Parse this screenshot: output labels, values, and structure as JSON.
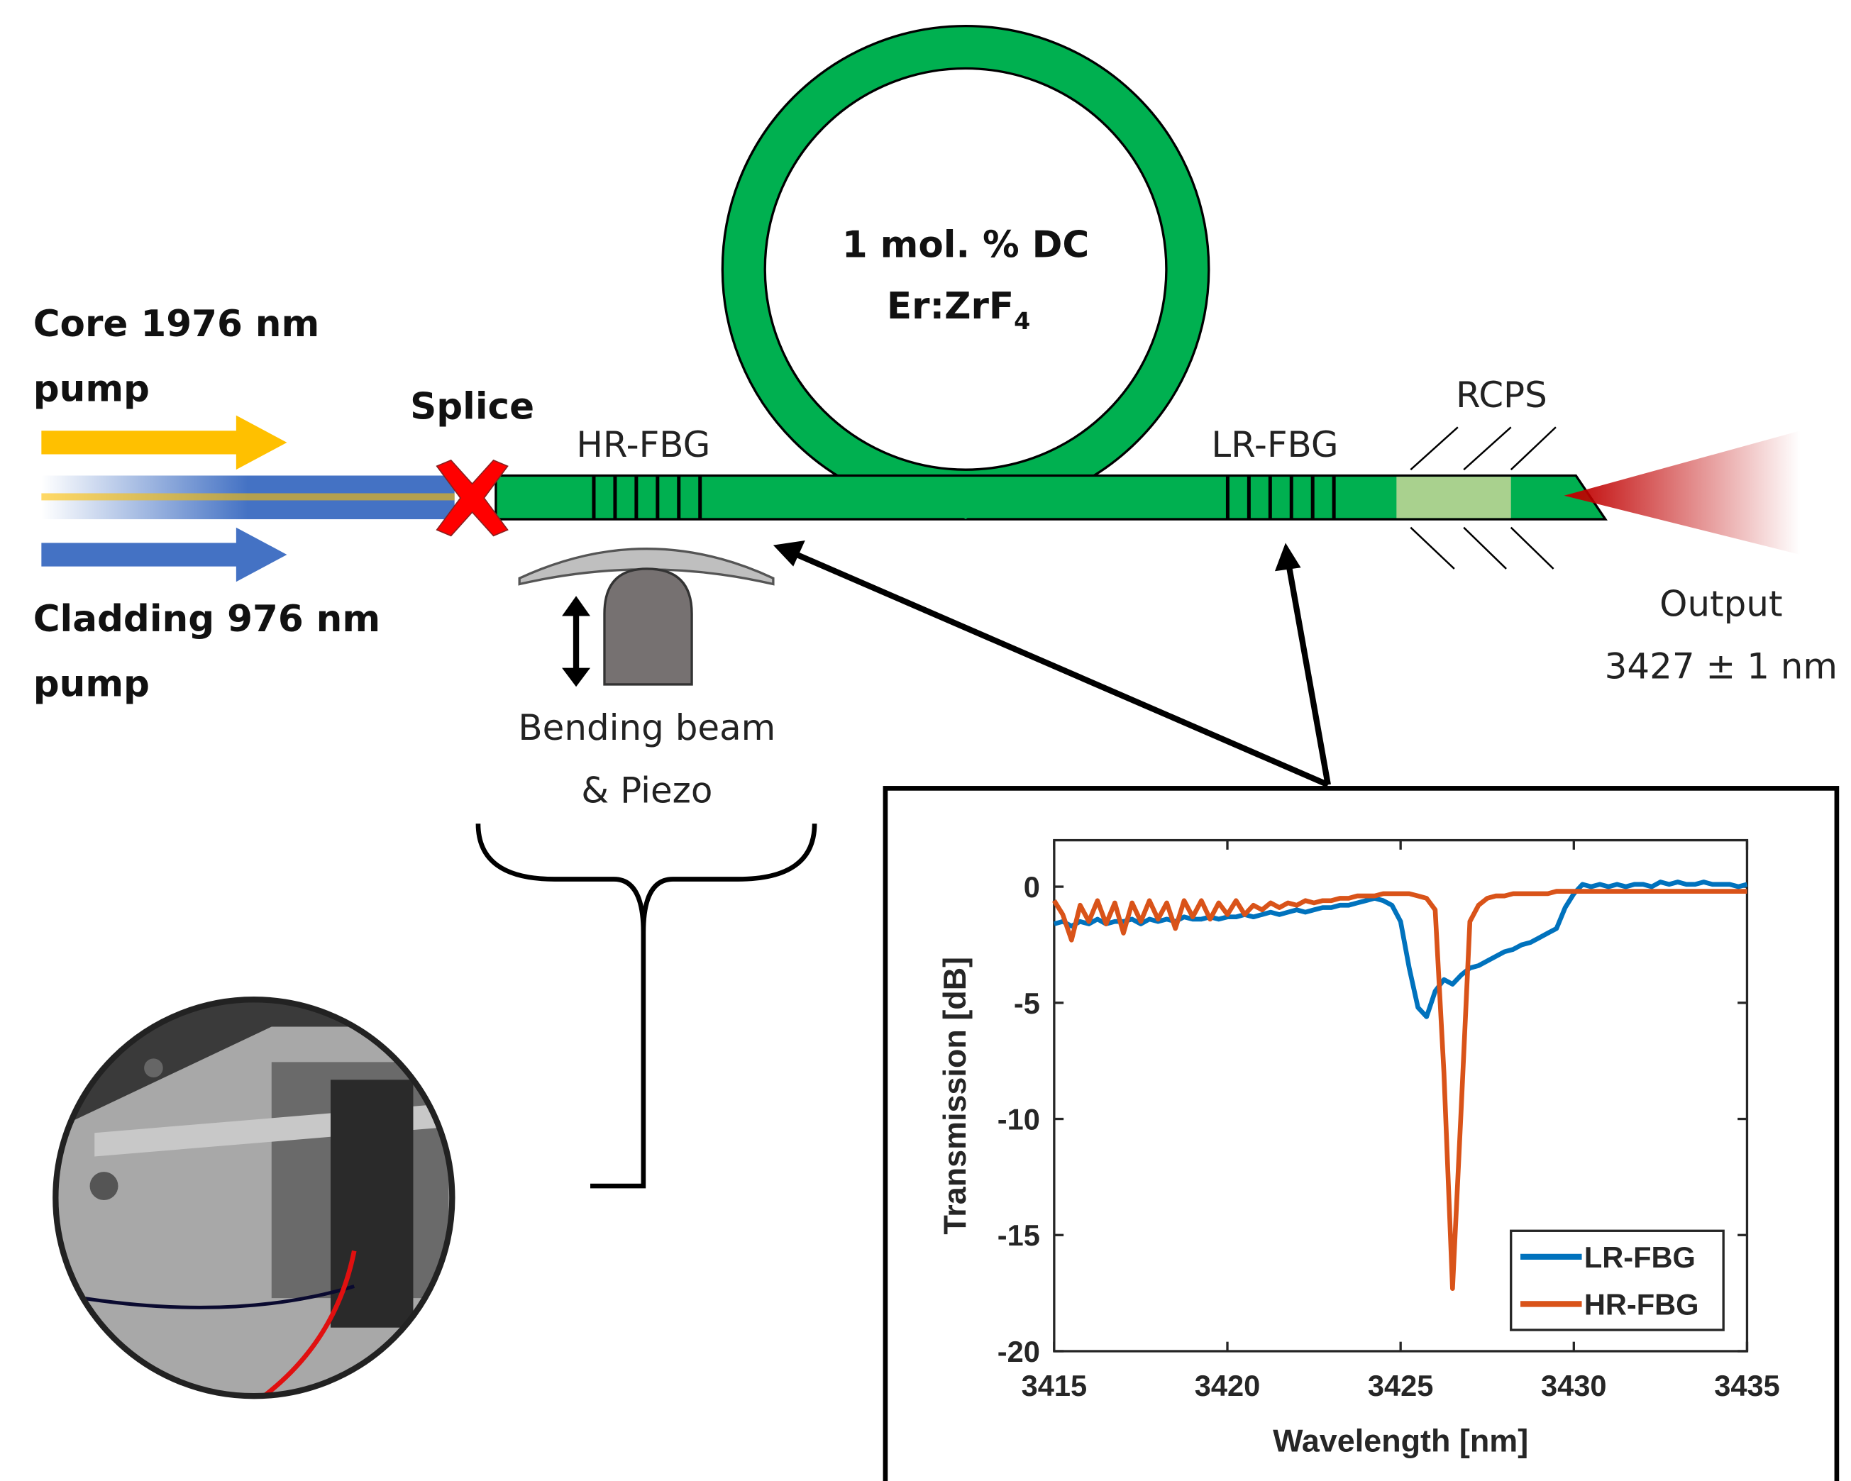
{
  "labels": {
    "core_pump": [
      "Core 1976 nm",
      "pump"
    ],
    "cladding_pump": [
      "Cladding 976 nm",
      "pump"
    ],
    "splice": "Splice",
    "hr_fbg": "HR-FBG",
    "lr_fbg": "LR-FBG",
    "rcps": "RCPS",
    "fiber": {
      "line1": "1 mol. % DC",
      "line2": {
        "main": "Er:ZrF",
        "sub": "4"
      }
    },
    "output": [
      "Output",
      "3427 ± 1 nm"
    ],
    "bending": [
      "Bending beam",
      "& Piezo"
    ]
  },
  "chart_data": {
    "type": "line",
    "xlabel": "Wavelength [nm]",
    "ylabel": "Transmission [dB]",
    "xlim": [
      3415,
      3435
    ],
    "ylim": [
      -20,
      2
    ],
    "xticks": [
      3415,
      3420,
      3425,
      3430,
      3435
    ],
    "yticks": [
      -20,
      -15,
      -10,
      -5,
      0
    ],
    "legend": "lower right",
    "x": [
      3415,
      3415.25,
      3415.5,
      3415.75,
      3416,
      3416.25,
      3416.5,
      3416.75,
      3417,
      3417.25,
      3417.5,
      3417.75,
      3418,
      3418.25,
      3418.5,
      3418.75,
      3419,
      3419.25,
      3419.5,
      3419.75,
      3420,
      3420.25,
      3420.5,
      3420.75,
      3421,
      3421.25,
      3421.5,
      3421.75,
      3422,
      3422.25,
      3422.5,
      3422.75,
      3423,
      3423.25,
      3423.5,
      3423.75,
      3424,
      3424.25,
      3424.5,
      3424.75,
      3425,
      3425.25,
      3425.5,
      3425.75,
      3426,
      3426.25,
      3426.5,
      3426.75,
      3427,
      3427.25,
      3427.5,
      3427.75,
      3428,
      3428.25,
      3428.5,
      3428.75,
      3429,
      3429.25,
      3429.5,
      3429.75,
      3430,
      3430.25,
      3430.5,
      3430.75,
      3431,
      3431.25,
      3431.5,
      3431.75,
      3432,
      3432.25,
      3432.5,
      3432.75,
      3433,
      3433.25,
      3433.5,
      3433.75,
      3434,
      3434.25,
      3434.5,
      3434.75,
      3435
    ],
    "series": [
      {
        "name": "LR-FBG",
        "color": "#0072bd",
        "values": [
          -1.6,
          -1.5,
          -1.7,
          -1.5,
          -1.6,
          -1.4,
          -1.6,
          -1.5,
          -1.5,
          -1.4,
          -1.6,
          -1.4,
          -1.5,
          -1.4,
          -1.5,
          -1.3,
          -1.4,
          -1.4,
          -1.3,
          -1.4,
          -1.3,
          -1.3,
          -1.2,
          -1.3,
          -1.2,
          -1.1,
          -1.2,
          -1.1,
          -1.0,
          -1.1,
          -1.0,
          -0.9,
          -0.9,
          -0.8,
          -0.8,
          -0.7,
          -0.6,
          -0.5,
          -0.6,
          -0.8,
          -1.5,
          -3.5,
          -5.2,
          -5.6,
          -4.5,
          -4.0,
          -4.2,
          -3.8,
          -3.5,
          -3.4,
          -3.2,
          -3.0,
          -2.8,
          -2.7,
          -2.5,
          -2.4,
          -2.2,
          -2.0,
          -1.8,
          -0.9,
          -0.3,
          0.1,
          0.0,
          0.1,
          0.0,
          0.1,
          0.0,
          0.1,
          0.1,
          0.0,
          0.2,
          0.1,
          0.2,
          0.1,
          0.1,
          0.2,
          0.1,
          0.1,
          0.1,
          0.0,
          0.1
        ]
      },
      {
        "name": "HR-FBG",
        "color": "#d95319",
        "values": [
          -0.6,
          -1.2,
          -2.3,
          -0.8,
          -1.5,
          -0.6,
          -1.6,
          -0.7,
          -2.0,
          -0.7,
          -1.5,
          -0.6,
          -1.4,
          -0.7,
          -1.8,
          -0.6,
          -1.3,
          -0.6,
          -1.4,
          -0.7,
          -1.2,
          -0.6,
          -1.2,
          -0.8,
          -1.0,
          -0.7,
          -0.9,
          -0.7,
          -0.8,
          -0.6,
          -0.7,
          -0.6,
          -0.6,
          -0.5,
          -0.5,
          -0.4,
          -0.4,
          -0.4,
          -0.3,
          -0.3,
          -0.3,
          -0.3,
          -0.4,
          -0.5,
          -1.0,
          -8.0,
          -17.3,
          -9.5,
          -1.5,
          -0.8,
          -0.5,
          -0.4,
          -0.4,
          -0.3,
          -0.3,
          -0.3,
          -0.3,
          -0.3,
          -0.2,
          -0.2,
          -0.2,
          -0.2,
          -0.2,
          -0.2,
          -0.2,
          -0.2,
          -0.2,
          -0.2,
          -0.2,
          -0.2,
          -0.2,
          -0.2,
          -0.2,
          -0.2,
          -0.2,
          -0.2,
          -0.2,
          -0.2,
          -0.2,
          -0.2,
          -0.2
        ]
      }
    ]
  }
}
